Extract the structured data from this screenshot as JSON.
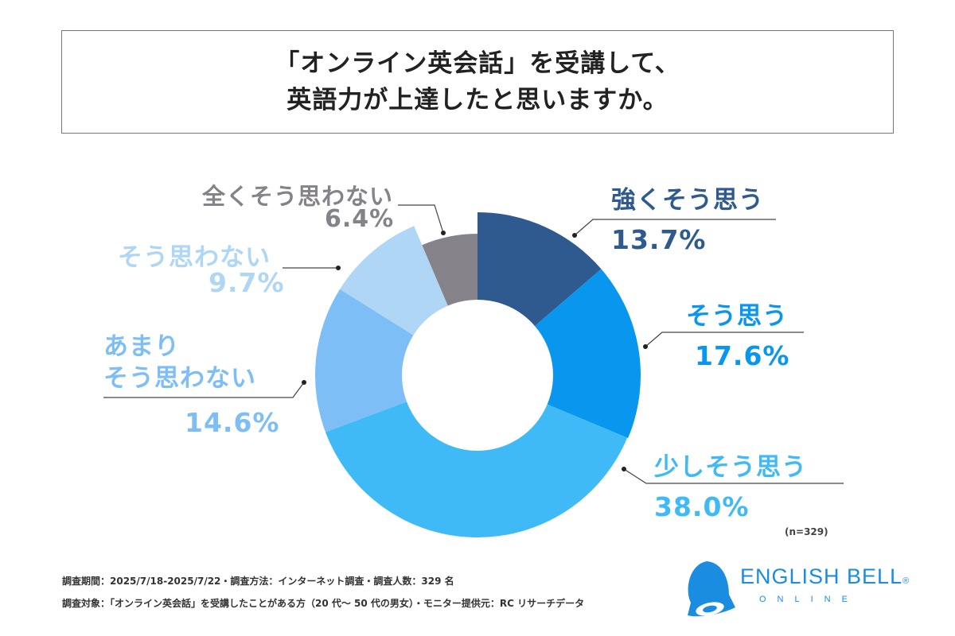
{
  "title": {
    "line1": "「オンライン英会話」を受講して、",
    "line2": "英語力が上達したと思いますか。"
  },
  "chart_data": {
    "type": "pie",
    "variant": "donut",
    "title": "「オンライン英会話」を受講して、英語力が上達したと思いますか。",
    "categories": [
      "強くそう思う",
      "そう思う",
      "少しそう思う",
      "あまりそう思わない",
      "そう思わない",
      "全くそう思わない"
    ],
    "values": [
      13.7,
      17.6,
      38.0,
      14.6,
      9.7,
      6.4
    ],
    "value_labels": [
      "13.7%",
      "17.6%",
      "38.0%",
      "14.6%",
      "9.7%",
      "6.4%"
    ],
    "colors": [
      "#2f5a8f",
      "#0896ee",
      "#40baf7",
      "#7dbef7",
      "#afd6f5",
      "#858389"
    ],
    "sample_note": "(n=329)"
  },
  "labels": {
    "strong_agree": "強くそう思う",
    "agree": "そう思う",
    "somewhat": "少しそう思う",
    "not_much_1": "あまり",
    "not_much_2": "そう思わない",
    "disagree": "そう思わない",
    "strong_disagree": "全くそう思わない"
  },
  "footer": {
    "line1": "調査期間：2025/7/18-2025/7/22・調査方法：インターネット調査・調査人数：329 名",
    "line2": "調査対象：「オンライン英会話」を受講したことがある方（20 代～ 50 代の男女）・モニター提供元：RC リサーチデータ"
  },
  "logo": {
    "name": "ENGLISH BELL",
    "mark": "®",
    "sub": "ONLINE"
  }
}
